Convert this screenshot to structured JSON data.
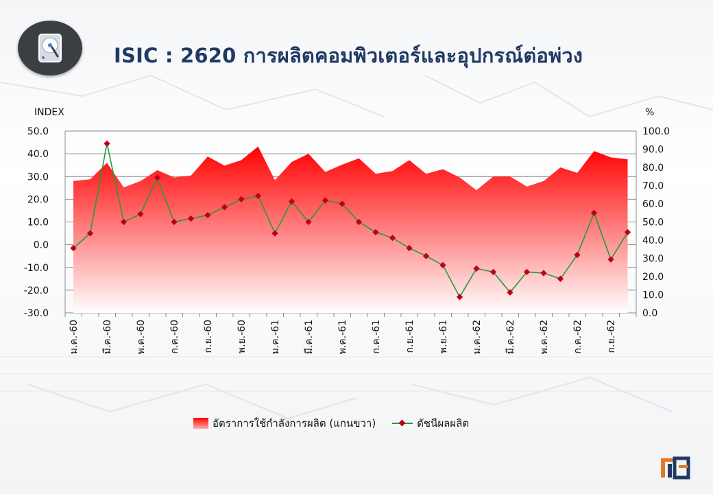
{
  "title": "ISIC : 2620  การผลิตคอมพิวเตอร์และอุปกรณ์ต่อพ่วง",
  "legend": {
    "area_label": "อัตราการใช้กำลังการผลิต (แกนขวา)",
    "line_label": "ดัชนีผลผลิต"
  },
  "colors": {
    "area_top": "#ff0000",
    "area_bottom": "#ffffff",
    "line": "#1f9e3a",
    "marker": "#c0001a",
    "title": "#1f3a63"
  },
  "icons": {
    "badge": "hard-disk-icon",
    "logo": "oie-logo"
  },
  "chart_data": {
    "type": "line",
    "ylabel_left": "INDEX",
    "ylabel_right": "%",
    "ylim_left": [
      -30,
      50
    ],
    "ylim_right": [
      0,
      100
    ],
    "yticks_left": [
      "50.0",
      "40.0",
      "30.0",
      "20.0",
      "10.0",
      "0.0",
      "-10.0",
      "-20.0",
      "-30.0"
    ],
    "yticks_right": [
      "100.0",
      "90.0",
      "80.0",
      "70.0",
      "60.0",
      "50.0",
      "40.0",
      "30.0",
      "20.0",
      "10.0",
      "0.0"
    ],
    "x_tick_labels": [
      {
        "index": 0,
        "label": "ม.ค.-60"
      },
      {
        "index": 2,
        "label": "มี.ค.-60"
      },
      {
        "index": 4,
        "label": "พ.ค.-60"
      },
      {
        "index": 6,
        "label": "ก.ค.-60"
      },
      {
        "index": 8,
        "label": "ก.ย.-60"
      },
      {
        "index": 10,
        "label": "พ.ย.-60"
      },
      {
        "index": 12,
        "label": "ม.ค.-61"
      },
      {
        "index": 14,
        "label": "มี.ค.-61"
      },
      {
        "index": 16,
        "label": "พ.ค.-61"
      },
      {
        "index": 18,
        "label": "ก.ค.-61"
      },
      {
        "index": 20,
        "label": "ก.ย.-61"
      },
      {
        "index": 22,
        "label": "พ.ย.-61"
      },
      {
        "index": 24,
        "label": "ม.ค.-62"
      },
      {
        "index": 26,
        "label": "มี.ค.-62"
      },
      {
        "index": 28,
        "label": "พ.ค.-62"
      },
      {
        "index": 30,
        "label": "ก.ค.-62"
      },
      {
        "index": 32,
        "label": "ก.ย.-62"
      }
    ],
    "grid": true,
    "legend_position": "bottom",
    "series": [
      {
        "name": "อัตราการใช้กำลังการผลิต (แกนขวา)",
        "type": "area",
        "axis": "right",
        "values": [
          72.5,
          73.5,
          82.5,
          69.0,
          72.5,
          78.5,
          74.5,
          75.5,
          86.0,
          81.0,
          84.0,
          91.5,
          73.0,
          83.0,
          87.5,
          77.5,
          81.5,
          85.0,
          76.5,
          78.0,
          84.0,
          76.5,
          79.0,
          74.5,
          67.5,
          75.0,
          75.0,
          69.5,
          72.5,
          80.0,
          77.0,
          89.0,
          85.5,
          84.5
        ]
      },
      {
        "name": "ดัชนีผลผลิต",
        "type": "line",
        "axis": "left",
        "values": [
          -1.5,
          5.0,
          44.5,
          10.0,
          13.5,
          29.5,
          10.0,
          11.5,
          13.0,
          16.5,
          20.0,
          21.5,
          5.0,
          19.0,
          10.0,
          19.5,
          18.0,
          10.0,
          5.5,
          3.0,
          -1.5,
          -5.0,
          -9.0,
          -23.0,
          -10.5,
          -12.0,
          -21.0,
          -12.0,
          -12.5,
          -15.0,
          -4.5,
          14.0,
          -6.5,
          5.5
        ]
      }
    ]
  }
}
